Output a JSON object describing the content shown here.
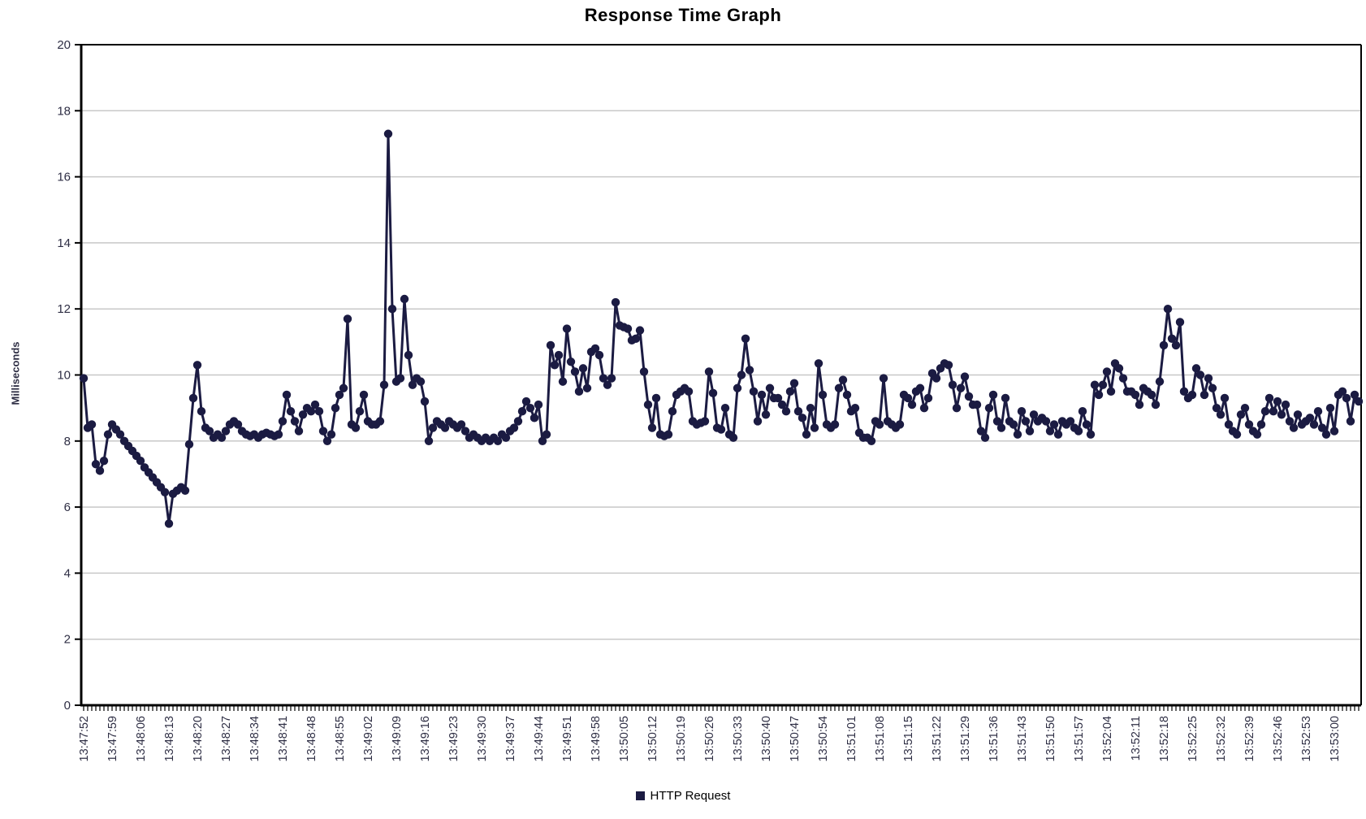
{
  "chart_data": {
    "type": "line",
    "title": "Response Time Graph",
    "ylabel": "Milliseconds",
    "ylim": [
      0,
      20
    ],
    "ytick_step": 2,
    "y_tick_labels": [
      "0",
      "2",
      "4",
      "6",
      "8",
      "10",
      "12",
      "14",
      "16",
      "18",
      "20"
    ],
    "grid": "horizontal",
    "legend_position": "bottom-center",
    "x_start_time": "13:47:52",
    "x_sample_interval_seconds": 1,
    "x_label_every_n_samples": 7,
    "x_labels": [
      "13:47:52",
      "13:47:59",
      "13:48:06",
      "13:48:13",
      "13:48:20",
      "13:48:27",
      "13:48:34",
      "13:48:41",
      "13:48:48",
      "13:48:55",
      "13:49:02",
      "13:49:09",
      "13:49:16",
      "13:49:23",
      "13:49:30",
      "13:49:37",
      "13:49:44",
      "13:49:51",
      "13:49:58",
      "13:50:05",
      "13:50:12",
      "13:50:19",
      "13:50:26",
      "13:50:33",
      "13:50:40",
      "13:50:47",
      "13:50:54",
      "13:51:01",
      "13:51:08",
      "13:51:15",
      "13:51:22",
      "13:51:29",
      "13:51:36",
      "13:51:43",
      "13:51:50",
      "13:51:57",
      "13:52:04",
      "13:52:11",
      "13:52:18",
      "13:52:25",
      "13:52:32",
      "13:52:39",
      "13:52:46",
      "13:52:53",
      "13:53:00"
    ],
    "series": [
      {
        "name": "HTTP Request",
        "color": "#1b1b42",
        "values": [
          9.9,
          8.4,
          8.5,
          7.3,
          7.1,
          7.4,
          8.2,
          8.5,
          8.35,
          8.2,
          8.0,
          7.85,
          7.7,
          7.55,
          7.4,
          7.2,
          7.05,
          6.9,
          6.75,
          6.6,
          6.45,
          5.5,
          6.4,
          6.5,
          6.6,
          6.5,
          7.9,
          9.3,
          10.3,
          8.9,
          8.4,
          8.3,
          8.1,
          8.2,
          8.1,
          8.3,
          8.5,
          8.6,
          8.5,
          8.3,
          8.2,
          8.15,
          8.2,
          8.1,
          8.2,
          8.25,
          8.2,
          8.15,
          8.2,
          8.6,
          9.4,
          8.9,
          8.6,
          8.3,
          8.8,
          9.0,
          8.9,
          9.1,
          8.9,
          8.3,
          8.0,
          8.2,
          9.0,
          9.4,
          9.6,
          11.7,
          8.5,
          8.4,
          8.9,
          9.4,
          8.6,
          8.5,
          8.5,
          8.6,
          9.7,
          17.3,
          12.0,
          9.8,
          9.9,
          12.3,
          10.6,
          9.7,
          9.9,
          9.8,
          9.2,
          8.0,
          8.4,
          8.6,
          8.5,
          8.4,
          8.6,
          8.5,
          8.4,
          8.5,
          8.3,
          8.1,
          8.2,
          8.1,
          8.0,
          8.1,
          8.0,
          8.1,
          8.0,
          8.2,
          8.1,
          8.3,
          8.4,
          8.6,
          8.9,
          9.2,
          9.0,
          8.7,
          9.1,
          8.0,
          8.2,
          10.9,
          10.3,
          10.6,
          9.8,
          11.4,
          10.4,
          10.1,
          9.5,
          10.2,
          9.6,
          10.7,
          10.8,
          10.6,
          9.9,
          9.7,
          9.9,
          12.2,
          11.5,
          11.45,
          11.4,
          11.05,
          11.1,
          11.35,
          10.1,
          9.1,
          8.4,
          9.3,
          8.2,
          8.15,
          8.2,
          8.9,
          9.4,
          9.5,
          9.6,
          9.5,
          8.6,
          8.5,
          8.55,
          8.6,
          10.1,
          9.45,
          8.4,
          8.35,
          9.0,
          8.2,
          8.1,
          9.6,
          10.0,
          11.1,
          10.15,
          9.5,
          8.6,
          9.4,
          8.8,
          9.6,
          9.3,
          9.3,
          9.1,
          8.9,
          9.5,
          9.75,
          8.9,
          8.7,
          8.2,
          9.0,
          8.4,
          10.35,
          9.4,
          8.5,
          8.4,
          8.5,
          9.6,
          9.85,
          9.4,
          8.9,
          9.0,
          8.25,
          8.1,
          8.1,
          8.0,
          8.6,
          8.5,
          9.9,
          8.6,
          8.5,
          8.4,
          8.5,
          9.4,
          9.3,
          9.1,
          9.5,
          9.6,
          9.0,
          9.3,
          10.05,
          9.9,
          10.2,
          10.35,
          10.3,
          9.7,
          9.0,
          9.6,
          9.95,
          9.35,
          9.1,
          9.1,
          8.3,
          8.1,
          9.0,
          9.4,
          8.6,
          8.4,
          9.3,
          8.6,
          8.5,
          8.2,
          8.9,
          8.6,
          8.3,
          8.8,
          8.6,
          8.7,
          8.6,
          8.3,
          8.5,
          8.2,
          8.6,
          8.5,
          8.6,
          8.4,
          8.3,
          8.9,
          8.5,
          8.2,
          9.7,
          9.4,
          9.7,
          10.1,
          9.5,
          10.35,
          10.2,
          9.9,
          9.5,
          9.5,
          9.4,
          9.1,
          9.6,
          9.5,
          9.4,
          9.1,
          9.8,
          10.9,
          12.0,
          11.1,
          10.9,
          11.6,
          9.5,
          9.3,
          9.4,
          10.2,
          10.0,
          9.4,
          9.9,
          9.6,
          9.0,
          8.8,
          9.3,
          8.5,
          8.3,
          8.2,
          8.8,
          9.0,
          8.5,
          8.3,
          8.2,
          8.5,
          8.9,
          9.3,
          8.9,
          9.2,
          8.8,
          9.1,
          8.6,
          8.4,
          8.8,
          8.5,
          8.6,
          8.7,
          8.5,
          8.9,
          8.4,
          8.2,
          9.0,
          8.3,
          9.4,
          9.5,
          9.3,
          8.6,
          9.4,
          9.2
        ]
      }
    ]
  },
  "colors": {
    "background": "#ffffff",
    "axis": "#000000",
    "gridline": "#c8c8c8",
    "tick_label": "#2e2e44",
    "title": "#000000",
    "series": "#1b1b42"
  }
}
